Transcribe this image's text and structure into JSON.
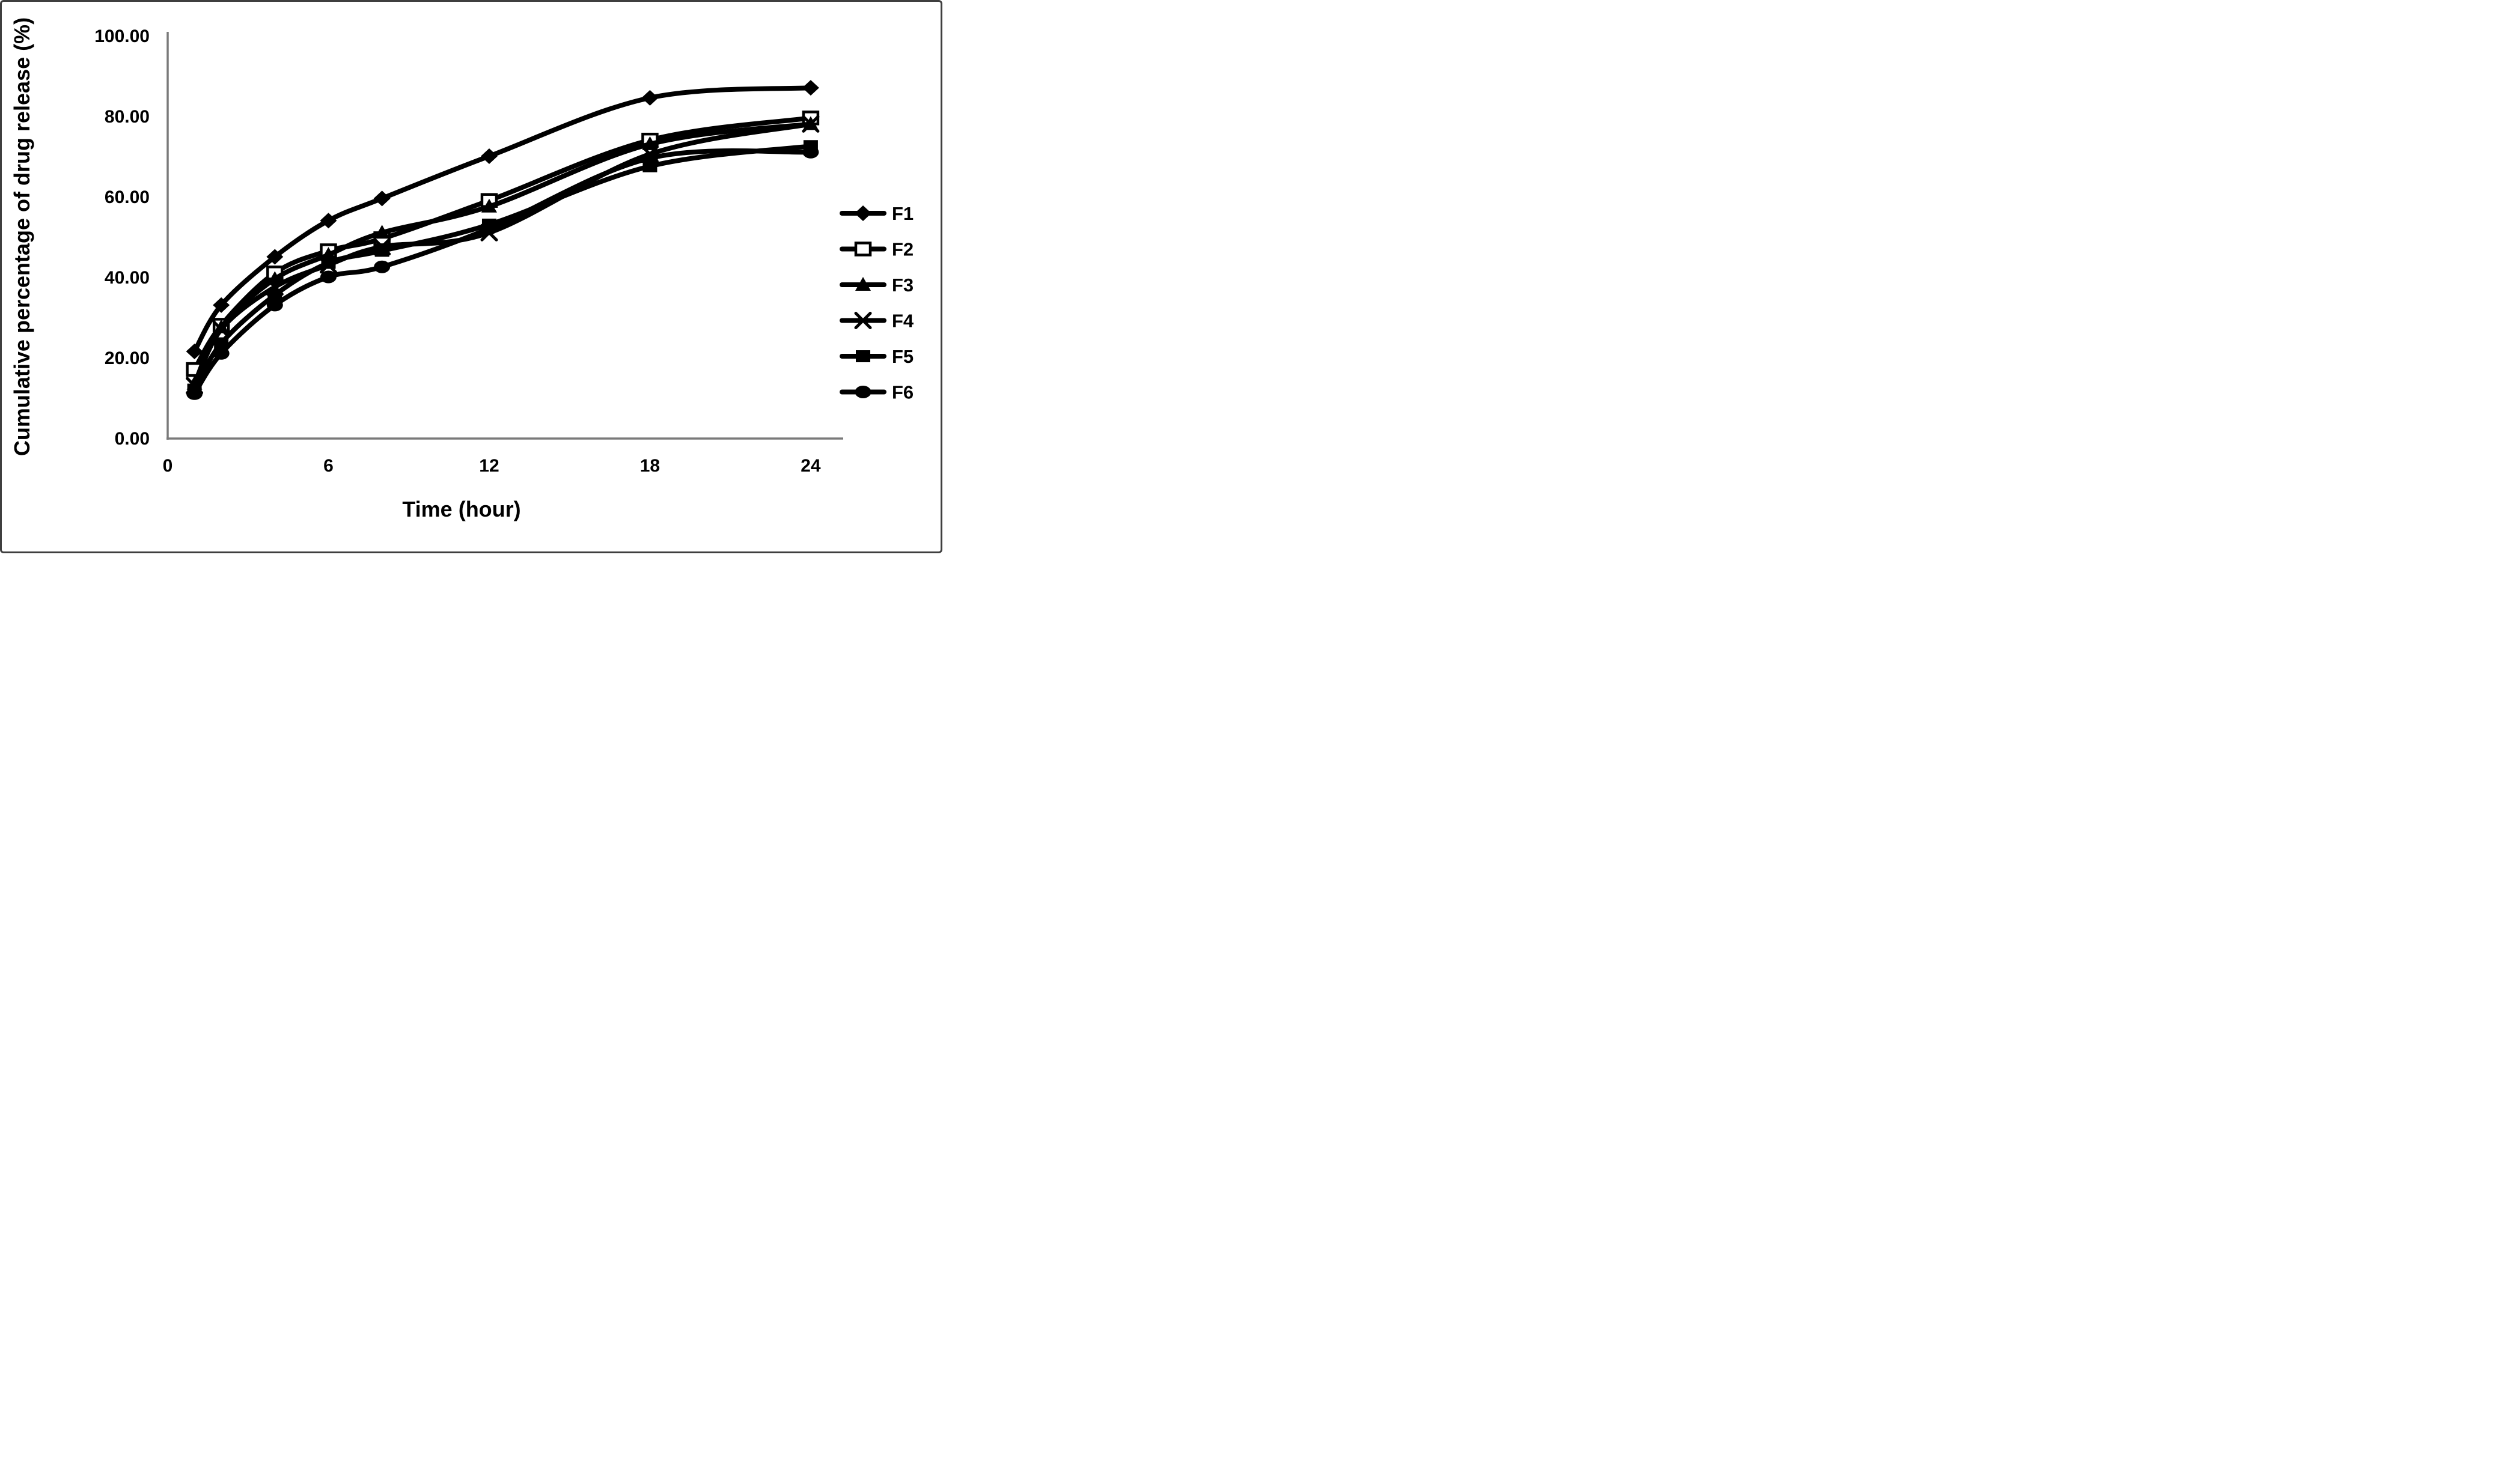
{
  "figure": {
    "colors": {
      "series": "#000000",
      "axis_line": "#7a7a7a",
      "border": "#3f3f3f",
      "background": "#ffffff",
      "open_marker_fill": "#ffffff"
    }
  },
  "chart_data": {
    "type": "line",
    "title": "",
    "xlabel": "Time (hour)",
    "ylabel": "Cumulative percentage of drug release (%)",
    "xlim": [
      0,
      24
    ],
    "ylim": [
      0,
      100
    ],
    "grid": false,
    "smooth_lines": true,
    "legend_position": "right",
    "x_ticks": [
      0,
      6,
      12,
      18,
      24
    ],
    "x_tick_labels": [
      "0",
      "6",
      "12",
      "18",
      "24"
    ],
    "y_ticks": [
      0,
      20,
      40,
      60,
      80,
      100
    ],
    "y_tick_labels": [
      "0.00",
      "20.00",
      "40.00",
      "60.00",
      "80.00",
      "100.00"
    ],
    "x": [
      1,
      2,
      4,
      6,
      8,
      12,
      18,
      24
    ],
    "series": [
      {
        "name": "F1",
        "marker": "diamond",
        "values": [
          21.5,
          33.0,
          45.0,
          54.0,
          59.5,
          70.0,
          84.5,
          87.0
        ]
      },
      {
        "name": "F2",
        "marker": "square-open",
        "values": [
          17.0,
          28.0,
          41.0,
          46.5,
          49.5,
          59.0,
          74.0,
          79.5
        ]
      },
      {
        "name": "F3",
        "marker": "triangle",
        "values": [
          13.5,
          27.5,
          39.5,
          45.5,
          51.0,
          57.5,
          73.0,
          78.0
        ]
      },
      {
        "name": "F4",
        "marker": "x-cross",
        "values": [
          13.0,
          27.0,
          37.5,
          43.0,
          47.5,
          51.0,
          70.5,
          78.0
        ]
      },
      {
        "name": "F5",
        "marker": "square-filled",
        "values": [
          12.0,
          23.5,
          35.5,
          43.5,
          46.5,
          53.0,
          67.5,
          72.5
        ]
      },
      {
        "name": "F6",
        "marker": "circle",
        "values": [
          11.0,
          21.0,
          33.0,
          40.0,
          42.5,
          52.0,
          69.5,
          71.0
        ]
      }
    ]
  }
}
